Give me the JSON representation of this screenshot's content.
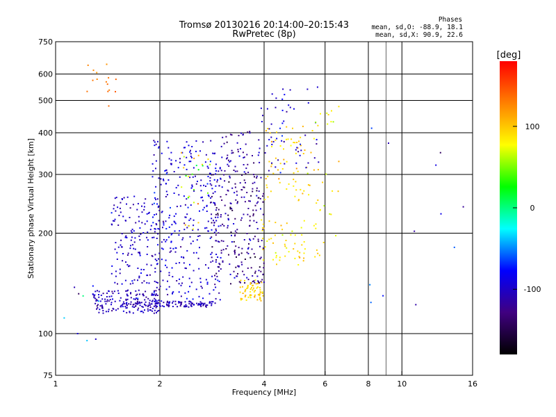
{
  "chart_data": {
    "type": "scatter",
    "title": "Tromsø 20130216 20:14:00–20:15:43",
    "subtitle": "RwPretec (8p)",
    "xlabel": "Frequency [MHz]",
    "ylabel": "Stationary phase Virtual Height [km]",
    "x_scale": "log",
    "y_scale": "log",
    "xlim": [
      1,
      16
    ],
    "ylim": [
      75,
      750
    ],
    "x_ticks": [
      1,
      2,
      4,
      6,
      8,
      10,
      16
    ],
    "y_ticks": [
      75,
      100,
      200,
      300,
      400,
      500,
      600,
      750
    ],
    "grid": true,
    "stats": {
      "heading": "Phases",
      "line_o": "mean, sd,O: -88.9, 18.1",
      "line_x": "mean, sd,X:  90.9, 22.6"
    },
    "colorbar": {
      "label": "[deg]",
      "range": [
        -180,
        180
      ],
      "ticks": [
        100,
        0,
        -100
      ],
      "colors": [
        "#ff0000",
        "#ff8000",
        "#ffff00",
        "#00ff00",
        "#00ffff",
        "#0000ff",
        "#400080",
        "#000000"
      ]
    },
    "clusters": [
      {
        "x_range": [
          1.28,
          2.0
        ],
        "y_range": [
          115,
          135
        ],
        "phase_mean": -105,
        "phase_sd": 10,
        "count": 160
      },
      {
        "x_range": [
          1.45,
          2.0
        ],
        "y_range": [
          140,
          260
        ],
        "phase_mean": -100,
        "phase_sd": 10,
        "count": 150
      },
      {
        "x_range": [
          1.55,
          2.9
        ],
        "y_range": [
          120,
          125
        ],
        "phase_mean": -105,
        "phase_sd": 10,
        "count": 120
      },
      {
        "x_range": [
          1.9,
          3.0
        ],
        "y_range": [
          125,
          380
        ],
        "phase_mean": -95,
        "phase_sd": 12,
        "count": 320
      },
      {
        "x_range": [
          2.3,
          2.8
        ],
        "y_range": [
          200,
          350
        ],
        "phase_mean": 60,
        "phase_sd": 40,
        "count": 25
      },
      {
        "x_range": [
          2.8,
          4.0
        ],
        "y_range": [
          140,
          300
        ],
        "phase_mean": -125,
        "phase_sd": 18,
        "count": 240
      },
      {
        "x_range": [
          3.0,
          3.9
        ],
        "y_range": [
          300,
          420
        ],
        "phase_mean": -115,
        "phase_sd": 15,
        "count": 55
      },
      {
        "x_range": [
          3.4,
          4.0
        ],
        "y_range": [
          125,
          145
        ],
        "phase_mean": 95,
        "phase_sd": 10,
        "count": 60
      },
      {
        "x_range": [
          3.9,
          5.8
        ],
        "y_range": [
          160,
          220
        ],
        "phase_mean": 90,
        "phase_sd": 12,
        "count": 60
      },
      {
        "x_range": [
          4.0,
          5.6
        ],
        "y_range": [
          250,
          420
        ],
        "phase_mean": 95,
        "phase_sd": 12,
        "count": 70
      },
      {
        "x_range": [
          3.9,
          5.8
        ],
        "y_range": [
          300,
          550
        ],
        "phase_mean": -95,
        "phase_sd": 15,
        "count": 55
      },
      {
        "x_range": [
          5.6,
          6.6
        ],
        "y_range": [
          180,
          480
        ],
        "phase_mean": 85,
        "phase_sd": 15,
        "count": 25
      },
      {
        "x_range": [
          1.2,
          1.5
        ],
        "y_range": [
          480,
          650
        ],
        "phase_mean": 130,
        "phase_sd": 8,
        "count": 15
      },
      {
        "x_range": [
          8,
          16
        ],
        "y_range": [
          120,
          450
        ],
        "phase_mean": -90,
        "phase_sd": 40,
        "count": 12
      },
      {
        "x_range": [
          1.05,
          1.4
        ],
        "y_range": [
          90,
          140
        ],
        "phase_mean": -90,
        "phase_sd": 50,
        "count": 10
      }
    ]
  }
}
